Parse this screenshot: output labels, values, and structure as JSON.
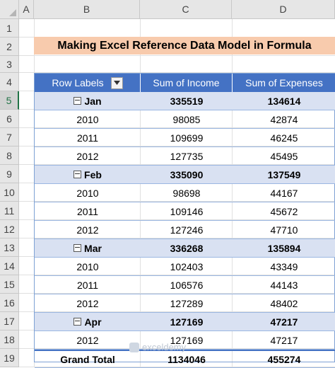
{
  "columns": [
    "A",
    "B",
    "C",
    "D"
  ],
  "rows": [
    "1",
    "2",
    "3",
    "4",
    "5",
    "6",
    "7",
    "8",
    "9",
    "10",
    "11",
    "12",
    "13",
    "14",
    "15",
    "16",
    "17",
    "18",
    "19"
  ],
  "title": "Making Excel Reference Data Model in Formula",
  "headers": {
    "row_labels": "Row Labels",
    "income": "Sum of Income",
    "expenses": "Sum of Expenses"
  },
  "groups": [
    {
      "label": "Jan",
      "income": "335519",
      "expenses": "134614",
      "years": [
        {
          "year": "2010",
          "income": "98085",
          "expenses": "42874"
        },
        {
          "year": "2011",
          "income": "109699",
          "expenses": "46245"
        },
        {
          "year": "2012",
          "income": "127735",
          "expenses": "45495"
        }
      ]
    },
    {
      "label": "Feb",
      "income": "335090",
      "expenses": "137549",
      "years": [
        {
          "year": "2010",
          "income": "98698",
          "expenses": "44167"
        },
        {
          "year": "2011",
          "income": "109146",
          "expenses": "45672"
        },
        {
          "year": "2012",
          "income": "127246",
          "expenses": "47710"
        }
      ]
    },
    {
      "label": "Mar",
      "income": "336268",
      "expenses": "135894",
      "years": [
        {
          "year": "2010",
          "income": "102403",
          "expenses": "43349"
        },
        {
          "year": "2011",
          "income": "106576",
          "expenses": "44143"
        },
        {
          "year": "2012",
          "income": "127289",
          "expenses": "48402"
        }
      ]
    },
    {
      "label": "Apr",
      "income": "127169",
      "expenses": "47217",
      "years": [
        {
          "year": "2012",
          "income": "127169",
          "expenses": "47217"
        }
      ]
    }
  ],
  "grand_total": {
    "label": "Grand Total",
    "income": "1134046",
    "expenses": "455274"
  },
  "watermark": "exceldemy",
  "colors": {
    "header_blue": "#4472c4",
    "group_fill": "#d9e1f2",
    "title_fill": "#f8cbad",
    "selection_green": "#217346"
  }
}
